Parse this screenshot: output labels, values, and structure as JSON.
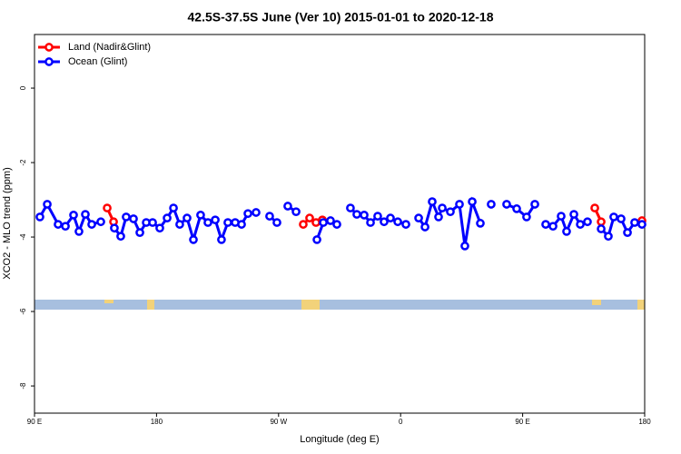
{
  "chart_data": {
    "type": "line",
    "title": "42.5S-37.5S June (Ver 10)   2015-01-01 to 2020-12-18",
    "x_label": "Longitude (deg E)",
    "y_label": "XCO2 - MLO trend (ppm)",
    "xlim": [
      90,
      540
    ],
    "ylim": [
      -8.73,
      1.44
    ],
    "xticks": [
      {
        "value": 90,
        "label": "90 E"
      },
      180,
      {
        "value": 270,
        "label": "90 W"
      },
      {
        "value": 360,
        "label": "0"
      },
      {
        "value": 450,
        "label": "90 E"
      },
      {
        "value": 540,
        "label": "180"
      }
    ],
    "yticks": [
      0,
      -2,
      -4,
      -6,
      -8
    ],
    "legend": "top-left",
    "series": [
      {
        "name": "Land (Nadir&Glint)",
        "color": "#ff0000",
        "x": [
          143.6,
          148.3,
          null,
          288.2,
          292.9,
          297.6,
          302.3,
          null,
          503.2,
          507.9,
          null,
          538.0
        ],
        "values": [
          -3.22,
          -3.59,
          null,
          -3.66,
          -3.49,
          -3.61,
          -3.54,
          null,
          -3.22,
          -3.59,
          null,
          -3.56
        ]
      },
      {
        "name": "Ocean (Glint)",
        "color": "#0000ff",
        "x": [
          94.0,
          99.4,
          107.4,
          112.8,
          118.8,
          122.8,
          127.5,
          132.2,
          138.9,
          null,
          148.9,
          153.6,
          157.6,
          163.0,
          167.7,
          172.4,
          177.1,
          182.4,
          187.8,
          192.5,
          197.1,
          202.5,
          207.2,
          212.5,
          217.9,
          223.3,
          227.9,
          232.6,
          238.0,
          242.7,
          247.4,
          253.4,
          null,
          263.4,
          268.8,
          null,
          276.8,
          282.9,
          null,
          298.3,
          303.0,
          308.3,
          313.0,
          null,
          323.0,
          327.7,
          333.1,
          337.8,
          343.1,
          347.8,
          352.5,
          357.9,
          363.9,
          null,
          373.3,
          378.0,
          383.3,
          388.0,
          390.7,
          396.7,
          403.4,
          407.4,
          412.8,
          418.8,
          null,
          426.8,
          null,
          438.2,
          445.6,
          452.9,
          459.0,
          null,
          467.0,
          472.4,
          478.4,
          482.4,
          487.8,
          492.5,
          497.8,
          null,
          507.9,
          513.2,
          517.2,
          522.6,
          527.3,
          532.6,
          538.0
        ],
        "values": [
          -3.46,
          -3.12,
          -3.66,
          -3.71,
          -3.41,
          -3.85,
          -3.39,
          -3.66,
          -3.59,
          null,
          -3.76,
          -3.98,
          -3.46,
          -3.51,
          -3.88,
          -3.61,
          -3.61,
          -3.76,
          -3.49,
          -3.22,
          -3.66,
          -3.49,
          -4.07,
          -3.41,
          -3.61,
          -3.54,
          -4.07,
          -3.61,
          -3.61,
          -3.66,
          -3.37,
          -3.34,
          null,
          -3.44,
          -3.61,
          null,
          -3.17,
          -3.32,
          null,
          -4.07,
          -3.61,
          -3.56,
          -3.66,
          null,
          -3.22,
          -3.39,
          -3.41,
          -3.61,
          -3.44,
          -3.59,
          -3.49,
          -3.59,
          -3.66,
          null,
          -3.49,
          -3.73,
          -3.05,
          -3.46,
          -3.22,
          -3.32,
          -3.12,
          -4.24,
          -3.05,
          -3.63,
          null,
          -3.12,
          null,
          -3.12,
          -3.24,
          -3.46,
          -3.12,
          null,
          -3.66,
          -3.71,
          -3.44,
          -3.85,
          -3.39,
          -3.66,
          -3.59,
          null,
          -3.78,
          -3.98,
          -3.46,
          -3.51,
          -3.88,
          -3.61,
          -3.66
        ]
      }
    ]
  }
}
